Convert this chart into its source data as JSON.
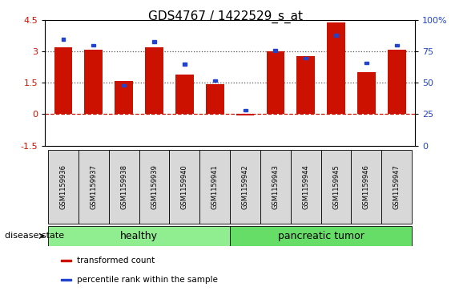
{
  "title": "GDS4767 / 1422529_s_at",
  "samples": [
    "GSM1159936",
    "GSM1159937",
    "GSM1159938",
    "GSM1159939",
    "GSM1159940",
    "GSM1159941",
    "GSM1159942",
    "GSM1159943",
    "GSM1159944",
    "GSM1159945",
    "GSM1159946",
    "GSM1159947"
  ],
  "transformed_count": [
    3.2,
    3.1,
    1.6,
    3.2,
    1.9,
    1.45,
    -0.05,
    3.0,
    2.8,
    4.4,
    2.0,
    3.1
  ],
  "percentile_rank": [
    85,
    80,
    48,
    83,
    65,
    52,
    28,
    76,
    70,
    88,
    66,
    80
  ],
  "groups": [
    {
      "label": "healthy",
      "start": 0,
      "end": 6,
      "color": "#90ee90"
    },
    {
      "label": "pancreatic tumor",
      "start": 6,
      "end": 12,
      "color": "#66dd66"
    }
  ],
  "red_color": "#cc1100",
  "blue_color": "#2244cc",
  "ylim_left": [
    -1.5,
    4.5
  ],
  "ylim_right": [
    0,
    100
  ],
  "yticks_left": [
    -1.5,
    0.0,
    1.5,
    3.0,
    4.5
  ],
  "yticks_right": [
    0,
    25,
    50,
    75,
    100
  ],
  "hlines": [
    0.0,
    1.5,
    3.0
  ],
  "hlines_styles": [
    "dashed",
    "dotted",
    "dotted"
  ],
  "hlines_colors": [
    "#cc1100",
    "#555555",
    "#555555"
  ],
  "bar_width": 0.6,
  "title_fontsize": 11,
  "legend_items": [
    {
      "label": "transformed count",
      "color": "#cc1100"
    },
    {
      "label": "percentile rank within the sample",
      "color": "#2244cc"
    }
  ],
  "disease_state_label": "disease state",
  "sample_bg_color": "#d8d8d8"
}
